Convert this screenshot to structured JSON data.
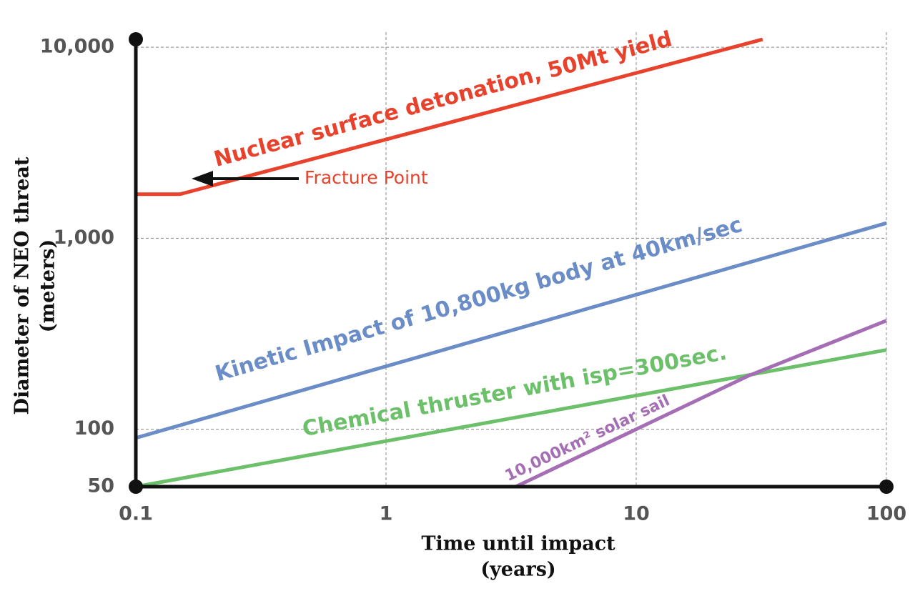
{
  "chart_data": {
    "type": "line",
    "x_label": [
      "Time until impact",
      "(years)"
    ],
    "y_label": [
      "Diameter of NEO threat",
      "(meters)"
    ],
    "xscale": "log",
    "yscale": "log",
    "grid": true,
    "xlim": [
      0.1,
      100
    ],
    "ylim": [
      50,
      12000
    ],
    "xticks": [
      0.1,
      1,
      10,
      100
    ],
    "yticks": [
      50,
      100,
      {
        "value": 1000,
        "label": "1,000"
      },
      {
        "value": 10000,
        "label": "10,000"
      }
    ],
    "series": [
      {
        "name": "Nuclear surface detonation, 50Mt yield",
        "color": "#e8412c",
        "x": [
          0.1,
          0.15,
          32
        ],
        "values": [
          1700,
          1700,
          11000
        ]
      },
      {
        "name": "Kinetic Impact of 10,800kg body at 40km/sec",
        "color": "#6a8cc7",
        "x": [
          0.1,
          100
        ],
        "values": [
          90,
          1200
        ]
      },
      {
        "name": "Chemical thruster with isp=300sec.",
        "color": "#6cc06a",
        "x": [
          0.1,
          100
        ],
        "values": [
          50,
          260
        ]
      },
      {
        "name": "10,000km² solar sail",
        "color": "#a46db4",
        "x": [
          3.3,
          28,
          100
        ],
        "values": [
          50,
          190,
          370
        ]
      }
    ],
    "annotations": [
      {
        "text": "Fracture Point",
        "color": "#e8412c"
      }
    ]
  }
}
